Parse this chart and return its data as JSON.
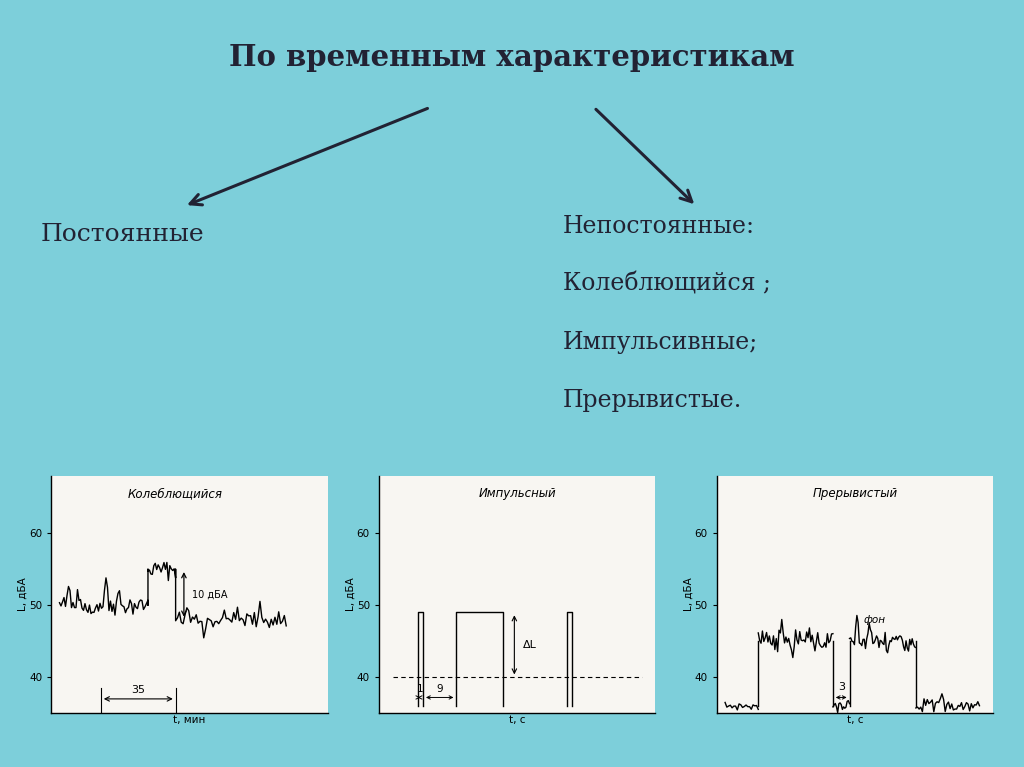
{
  "bg_color": "#7dcfda",
  "title": "По временным характеристикам",
  "left_label": "Постоянные",
  "right_label_lines": [
    "Непостоянные:",
    "Колеблющийся ;",
    "Импульсивные;",
    "Прерывистые."
  ],
  "chart1_title": "Колеблющийся",
  "chart2_title": "Импульсный",
  "chart3_title": "Прерывистый",
  "ylabel": "L, дБА",
  "xlabel1": "t, мин",
  "xlabel23": "t, с",
  "panel_bg": "#e8e4dc",
  "chart_bg": "#f8f6f2"
}
